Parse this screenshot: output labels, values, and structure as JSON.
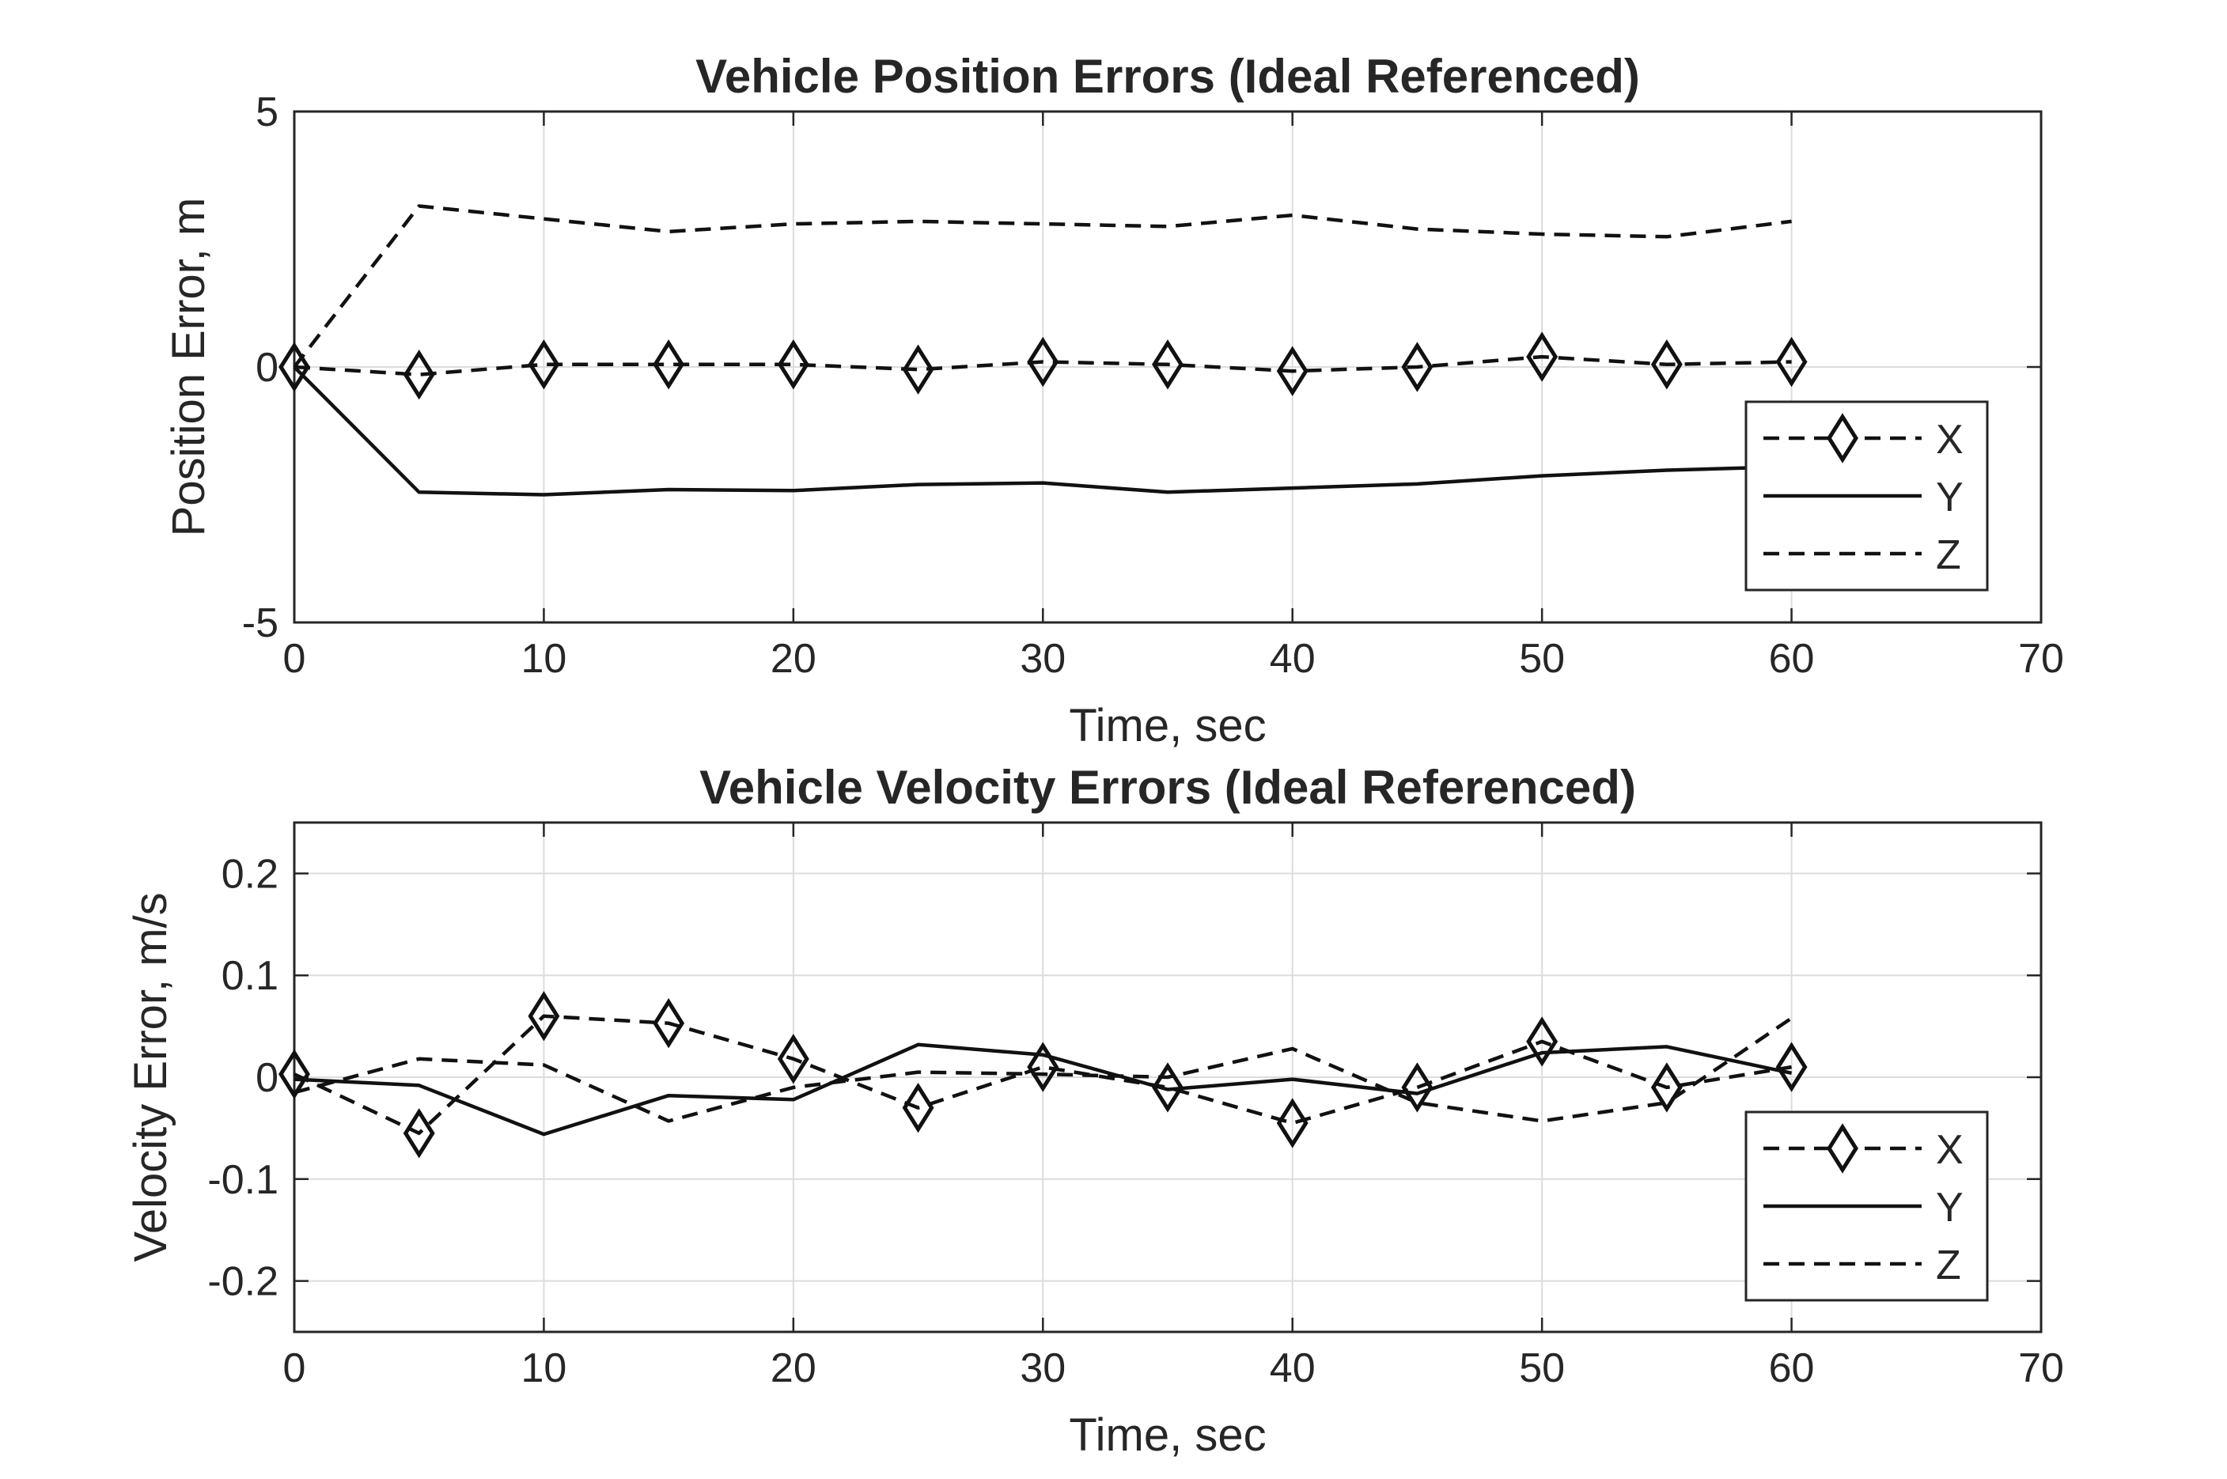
{
  "chart_data": [
    {
      "type": "line",
      "title": "Vehicle Position Errors (Ideal Referenced)",
      "xlabel": "Time, sec",
      "ylabel": "Position Error, m",
      "xlim": [
        0,
        70
      ],
      "ylim": [
        -5,
        5
      ],
      "xticks": [
        "0",
        "10",
        "20",
        "30",
        "40",
        "50",
        "60",
        "70"
      ],
      "yticks": [
        "-5",
        "0",
        "5"
      ],
      "grid": true,
      "legend": "bottom-right",
      "x": [
        0,
        5,
        10,
        15,
        20,
        25,
        30,
        35,
        40,
        45,
        50,
        55,
        60
      ],
      "series": [
        {
          "name": "X",
          "style": "dashed-diamond",
          "values": [
            0.0,
            -0.15,
            0.05,
            0.05,
            0.05,
            -0.05,
            0.1,
            0.05,
            -0.08,
            0.0,
            0.2,
            0.05,
            0.1
          ]
        },
        {
          "name": "Y",
          "style": "solid",
          "values": [
            0.0,
            -2.45,
            -2.5,
            -2.4,
            -2.42,
            -2.3,
            -2.27,
            -2.45,
            -2.37,
            -2.29,
            -2.13,
            -2.02,
            -1.95
          ]
        },
        {
          "name": "Z",
          "style": "dashed",
          "values": [
            0.0,
            3.15,
            2.9,
            2.65,
            2.8,
            2.85,
            2.8,
            2.75,
            2.97,
            2.7,
            2.6,
            2.55,
            2.85
          ]
        }
      ]
    },
    {
      "type": "line",
      "title": "Vehicle Velocity Errors (Ideal Referenced)",
      "xlabel": "Time, sec",
      "ylabel": "Velocity Error, m/s",
      "xlim": [
        0,
        70
      ],
      "ylim": [
        -0.25,
        0.25
      ],
      "xticks": [
        "0",
        "10",
        "20",
        "30",
        "40",
        "50",
        "60",
        "70"
      ],
      "yticks": [
        "-0.2",
        "-0.1",
        "0",
        "0.1",
        "0.2"
      ],
      "grid": true,
      "legend": "bottom-right",
      "x": [
        0,
        5,
        10,
        15,
        20,
        25,
        30,
        35,
        40,
        45,
        50,
        55,
        60
      ],
      "series": [
        {
          "name": "X",
          "style": "dashed-diamond",
          "values": [
            0.003,
            -0.055,
            0.06,
            0.053,
            0.018,
            -0.03,
            0.01,
            -0.01,
            -0.045,
            -0.01,
            0.035,
            -0.01,
            0.01
          ]
        },
        {
          "name": "Y",
          "style": "solid",
          "values": [
            -0.002,
            -0.008,
            -0.056,
            -0.018,
            -0.022,
            0.032,
            0.022,
            -0.012,
            -0.002,
            -0.016,
            0.024,
            0.03,
            0.004
          ]
        },
        {
          "name": "Z",
          "style": "dashed",
          "values": [
            -0.015,
            0.018,
            0.012,
            -0.043,
            -0.01,
            0.005,
            0.003,
            0.0,
            0.028,
            -0.025,
            -0.043,
            -0.025,
            0.058
          ]
        }
      ]
    }
  ]
}
